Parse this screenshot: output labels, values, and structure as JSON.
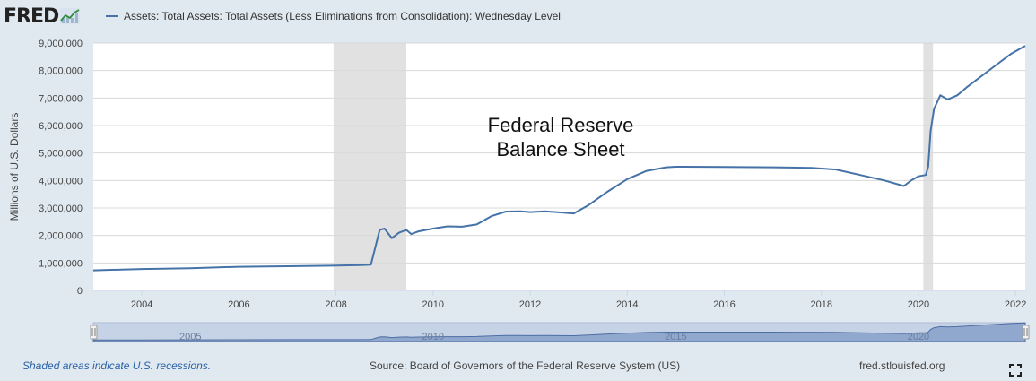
{
  "header": {
    "logo_text": "FRED",
    "logo_icon": "line-chart-icon",
    "legend_label": "Assets: Total Assets: Total Assets (Less Eliminations from Consolidation): Wednesday Level",
    "series_color": "#4572a7"
  },
  "chart_data": {
    "type": "line",
    "ylabel": "Millions of U.S. Dollars",
    "xlim": [
      2003.0,
      2022.2
    ],
    "ylim": [
      0,
      9000000
    ],
    "y_ticks": [
      0,
      1000000,
      2000000,
      3000000,
      4000000,
      5000000,
      6000000,
      7000000,
      8000000,
      9000000
    ],
    "y_tick_labels": [
      "0",
      "1,000,000",
      "2,000,000",
      "3,000,000",
      "4,000,000",
      "5,000,000",
      "6,000,000",
      "7,000,000",
      "8,000,000",
      "9,000,000"
    ],
    "x_ticks": [
      2004,
      2006,
      2008,
      2010,
      2012,
      2014,
      2016,
      2018,
      2020,
      2022
    ],
    "x_tick_labels": [
      "2004",
      "2006",
      "2008",
      "2010",
      "2012",
      "2014",
      "2016",
      "2018",
      "2020",
      "2022"
    ],
    "grid": true,
    "annotation": [
      "Federal Reserve",
      "Balance Sheet"
    ],
    "recessions": [
      [
        2007.95,
        2009.45
      ],
      [
        2020.1,
        2020.3
      ]
    ],
    "series": [
      {
        "x": [
          2003.0,
          2004.0,
          2005.0,
          2006.0,
          2007.0,
          2007.9,
          2008.5,
          2008.72,
          2008.8,
          2008.9,
          2009.0,
          2009.15,
          2009.3,
          2009.45,
          2009.55,
          2009.7,
          2009.85,
          2010.0,
          2010.3,
          2010.6,
          2010.9,
          2011.2,
          2011.5,
          2011.8,
          2012.0,
          2012.3,
          2012.6,
          2012.9,
          2013.2,
          2013.6,
          2014.0,
          2014.4,
          2014.8,
          2015.0,
          2016.0,
          2017.0,
          2017.8,
          2018.3,
          2018.8,
          2019.3,
          2019.7,
          2019.85,
          2020.0,
          2020.15,
          2020.2,
          2020.25,
          2020.32,
          2020.45,
          2020.6,
          2020.8,
          2021.0,
          2021.3,
          2021.6,
          2021.9,
          2022.2
        ],
        "values": [
          730000,
          780000,
          810000,
          860000,
          880000,
          900000,
          920000,
          940000,
          1500000,
          2200000,
          2250000,
          1900000,
          2100000,
          2200000,
          2050000,
          2150000,
          2200000,
          2250000,
          2330000,
          2320000,
          2400000,
          2700000,
          2870000,
          2880000,
          2850000,
          2880000,
          2840000,
          2800000,
          3100000,
          3600000,
          4050000,
          4350000,
          4480000,
          4500000,
          4490000,
          4480000,
          4460000,
          4400000,
          4200000,
          4000000,
          3800000,
          4000000,
          4150000,
          4200000,
          4500000,
          5800000,
          6600000,
          7100000,
          6950000,
          7100000,
          7400000,
          7800000,
          8200000,
          8600000,
          8900000
        ]
      }
    ],
    "navigator": {
      "x_labels": [
        "2005",
        "2010",
        "2015",
        "2020"
      ],
      "x_ticks": [
        2005,
        2010,
        2015,
        2020
      ]
    }
  },
  "footer": {
    "note": "Shaded areas indicate U.S. recessions.",
    "source": "Source: Board of Governors of the Federal Reserve System (US)",
    "url": "fred.stlouisfed.org",
    "fullscreen_icon": "fullscreen-icon"
  }
}
